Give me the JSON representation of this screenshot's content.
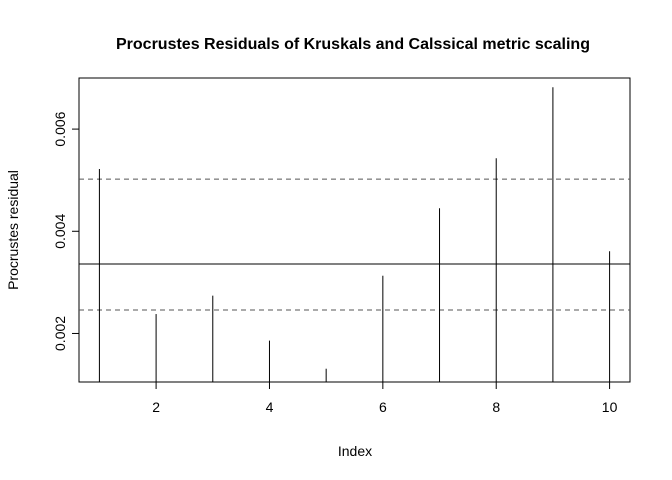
{
  "chart_data": {
    "type": "line",
    "title": "Procrustes Residuals of Kruskals and Calssical metric scaling",
    "xlabel": "Index",
    "ylabel": "Procrustes residual",
    "xlim": [
      0.64,
      10.36
    ],
    "ylim": [
      0.00105,
      0.007
    ],
    "x": [
      1,
      2,
      3,
      4,
      5,
      6,
      7,
      8,
      9,
      10
    ],
    "values": [
      0.00522,
      0.00238,
      0.00274,
      0.00186,
      0.00131,
      0.00313,
      0.00445,
      0.00543,
      0.00682,
      0.00361
    ],
    "x_ticks": [
      2,
      4,
      6,
      8,
      10
    ],
    "x_tick_labels": [
      "2",
      "4",
      "6",
      "8",
      "10"
    ],
    "y_ticks": [
      0.002,
      0.004,
      0.006
    ],
    "y_tick_labels": [
      "0.002",
      "0.004",
      "0.006"
    ],
    "reference_lines": [
      {
        "y": 0.00336,
        "style": "solid"
      },
      {
        "y": 0.00502,
        "style": "dashed"
      },
      {
        "y": 0.00246,
        "style": "dashed"
      }
    ],
    "grid": false,
    "legend": "none"
  }
}
